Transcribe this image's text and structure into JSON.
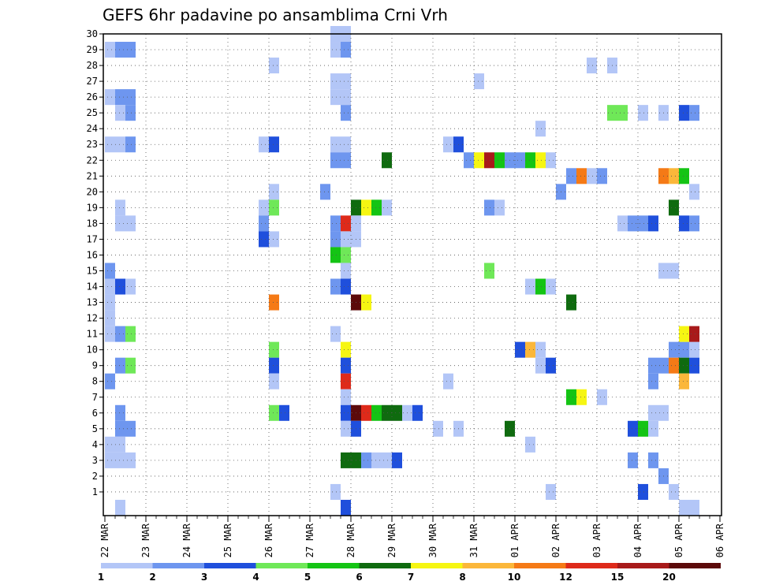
{
  "chart_data": {
    "type": "heatmap",
    "title": "GEFS 6hr padavine po ansamblima Crni Vrh",
    "ylim": [
      0,
      30
    ],
    "y_ticks": [
      "1",
      "2",
      "3",
      "4",
      "5",
      "6",
      "7",
      "8",
      "9",
      "10",
      "11",
      "12",
      "13",
      "14",
      "15",
      "16",
      "17",
      "18",
      "19",
      "20",
      "21",
      "22",
      "23",
      "24",
      "25",
      "26",
      "27",
      "28",
      "29",
      "30"
    ],
    "x_ticks": [
      "22 MAR",
      "23 MAR",
      "24 MAR",
      "25 MAR",
      "26 MAR",
      "27 MAR",
      "28 MAR",
      "29 MAR",
      "30 MAR",
      "31 MAR",
      "01 APR",
      "02 APR",
      "03 APR",
      "04 APR",
      "05 APR",
      "06 APR"
    ],
    "steps_per_day": 4,
    "grid": "dotted",
    "colorbar": {
      "levels": [
        "1",
        "2",
        "3",
        "4",
        "5",
        "6",
        "7",
        "8",
        "10",
        "12",
        "15",
        "20"
      ],
      "colors": [
        "#b3c6f7",
        "#6e96ef",
        "#1f4fdc",
        "#6fe858",
        "#14c414",
        "#0f6b0f",
        "#f6f612",
        "#fbb73a",
        "#f57a16",
        "#de2a1a",
        "#a81a1a",
        "#5c0a0a"
      ]
    },
    "cells": [
      [
        0,
        29,
        0
      ],
      [
        1,
        29,
        1
      ],
      [
        2,
        29,
        1
      ],
      [
        0,
        26,
        0
      ],
      [
        1,
        26,
        1
      ],
      [
        2,
        26,
        1
      ],
      [
        1,
        25,
        0
      ],
      [
        2,
        25,
        1
      ],
      [
        0,
        23,
        0
      ],
      [
        1,
        23,
        0
      ],
      [
        2,
        23,
        1
      ],
      [
        1,
        19,
        0
      ],
      [
        1,
        18,
        0
      ],
      [
        2,
        18,
        0
      ],
      [
        0,
        15,
        1
      ],
      [
        0,
        14,
        0
      ],
      [
        1,
        14,
        2
      ],
      [
        2,
        14,
        0
      ],
      [
        0,
        13,
        0
      ],
      [
        0,
        12,
        0
      ],
      [
        0,
        11,
        0
      ],
      [
        1,
        11,
        1
      ],
      [
        2,
        11,
        3
      ],
      [
        1,
        9,
        1
      ],
      [
        2,
        9,
        3
      ],
      [
        0,
        8,
        1
      ],
      [
        1,
        6,
        1
      ],
      [
        1,
        5,
        1
      ],
      [
        2,
        5,
        1
      ],
      [
        0,
        4,
        0
      ],
      [
        1,
        4,
        0
      ],
      [
        0,
        3,
        0
      ],
      [
        1,
        3,
        0
      ],
      [
        2,
        3,
        0
      ],
      [
        1,
        0,
        0
      ],
      [
        16,
        28,
        0
      ],
      [
        15,
        23,
        0
      ],
      [
        16,
        23,
        2
      ],
      [
        16,
        20,
        0
      ],
      [
        15,
        19,
        0
      ],
      [
        16,
        19,
        3
      ],
      [
        15,
        18,
        1
      ],
      [
        15,
        17,
        2
      ],
      [
        16,
        17,
        0
      ],
      [
        16,
        13,
        8
      ],
      [
        16,
        10,
        3
      ],
      [
        16,
        9,
        2
      ],
      [
        16,
        8,
        0
      ],
      [
        16,
        6,
        3
      ],
      [
        17,
        6,
        2
      ],
      [
        21,
        20,
        1
      ],
      [
        22,
        30,
        0
      ],
      [
        23,
        30,
        0
      ],
      [
        22,
        29,
        0
      ],
      [
        23,
        29,
        1
      ],
      [
        22,
        27,
        0
      ],
      [
        23,
        27,
        0
      ],
      [
        22,
        26,
        0
      ],
      [
        23,
        26,
        0
      ],
      [
        23,
        25,
        1
      ],
      [
        22,
        23,
        0
      ],
      [
        23,
        23,
        0
      ],
      [
        22,
        22,
        1
      ],
      [
        23,
        22,
        1
      ],
      [
        22,
        18,
        1
      ],
      [
        23,
        18,
        9
      ],
      [
        22,
        17,
        1
      ],
      [
        23,
        17,
        0
      ],
      [
        22,
        16,
        4
      ],
      [
        23,
        16,
        3
      ],
      [
        23,
        15,
        0
      ],
      [
        22,
        14,
        1
      ],
      [
        23,
        14,
        2
      ],
      [
        22,
        11,
        0
      ],
      [
        23,
        10,
        6
      ],
      [
        23,
        9,
        2
      ],
      [
        23,
        8,
        9
      ],
      [
        23,
        7,
        0
      ],
      [
        23,
        6,
        2
      ],
      [
        23,
        5,
        0
      ],
      [
        23,
        3,
        5
      ],
      [
        22,
        1,
        0
      ],
      [
        23,
        0,
        2
      ],
      [
        24,
        19,
        5
      ],
      [
        25,
        19,
        6
      ],
      [
        26,
        19,
        4
      ],
      [
        27,
        19,
        0
      ],
      [
        24,
        18,
        0
      ],
      [
        24,
        17,
        0
      ],
      [
        24,
        13,
        11
      ],
      [
        25,
        13,
        6
      ],
      [
        24,
        6,
        11
      ],
      [
        25,
        6,
        9
      ],
      [
        26,
        6,
        4
      ],
      [
        27,
        6,
        5
      ],
      [
        28,
        6,
        5
      ],
      [
        29,
        6,
        0
      ],
      [
        30,
        6,
        2
      ],
      [
        24,
        5,
        2
      ],
      [
        24,
        3,
        5
      ],
      [
        25,
        3,
        1
      ],
      [
        26,
        3,
        0
      ],
      [
        27,
        3,
        0
      ],
      [
        28,
        3,
        2
      ],
      [
        27,
        22,
        5
      ],
      [
        32,
        5,
        0
      ],
      [
        34,
        5,
        0
      ],
      [
        33,
        8,
        0
      ],
      [
        33,
        23,
        0
      ],
      [
        34,
        23,
        2
      ],
      [
        36,
        27,
        0
      ],
      [
        35,
        22,
        1
      ],
      [
        36,
        22,
        6
      ],
      [
        37,
        22,
        10
      ],
      [
        38,
        22,
        4
      ],
      [
        39,
        22,
        1
      ],
      [
        40,
        22,
        1
      ],
      [
        41,
        22,
        4
      ],
      [
        42,
        22,
        6
      ],
      [
        43,
        22,
        0
      ],
      [
        37,
        19,
        1
      ],
      [
        38,
        19,
        0
      ],
      [
        37,
        15,
        3
      ],
      [
        39,
        5,
        5
      ],
      [
        40,
        10,
        2
      ],
      [
        41,
        10,
        7
      ],
      [
        42,
        10,
        0
      ],
      [
        41,
        14,
        0
      ],
      [
        42,
        14,
        4
      ],
      [
        43,
        14,
        0
      ],
      [
        42,
        9,
        0
      ],
      [
        43,
        9,
        2
      ],
      [
        41,
        4,
        0
      ],
      [
        42,
        24,
        0
      ],
      [
        44,
        20,
        1
      ],
      [
        45,
        21,
        1
      ],
      [
        46,
        21,
        8
      ],
      [
        47,
        21,
        0
      ],
      [
        48,
        21,
        1
      ],
      [
        45,
        13,
        5
      ],
      [
        43,
        1,
        0
      ],
      [
        45,
        7,
        4
      ],
      [
        46,
        7,
        6
      ],
      [
        47,
        28,
        0
      ],
      [
        49,
        28,
        0
      ],
      [
        48,
        7,
        0
      ],
      [
        49,
        25,
        3
      ],
      [
        50,
        25,
        3
      ],
      [
        52,
        25,
        0
      ],
      [
        54,
        25,
        0
      ],
      [
        56,
        25,
        2
      ],
      [
        57,
        25,
        1
      ],
      [
        50,
        18,
        0
      ],
      [
        51,
        18,
        1
      ],
      [
        52,
        18,
        1
      ],
      [
        53,
        18,
        2
      ],
      [
        56,
        18,
        2
      ],
      [
        57,
        18,
        1
      ],
      [
        54,
        21,
        8
      ],
      [
        55,
        21,
        7
      ],
      [
        56,
        21,
        4
      ],
      [
        55,
        19,
        5
      ],
      [
        54,
        15,
        0
      ],
      [
        55,
        15,
        0
      ],
      [
        55,
        10,
        1
      ],
      [
        56,
        10,
        1
      ],
      [
        57,
        10,
        0
      ],
      [
        54,
        9,
        1
      ],
      [
        55,
        9,
        8
      ],
      [
        56,
        9,
        5
      ],
      [
        57,
        9,
        2
      ],
      [
        53,
        8,
        1
      ],
      [
        56,
        8,
        7
      ],
      [
        53,
        9,
        1
      ],
      [
        56,
        11,
        6
      ],
      [
        57,
        11,
        10
      ],
      [
        53,
        6,
        0
      ],
      [
        54,
        6,
        0
      ],
      [
        51,
        5,
        2
      ],
      [
        52,
        5,
        4
      ],
      [
        53,
        5,
        0
      ],
      [
        51,
        3,
        1
      ],
      [
        53,
        3,
        1
      ],
      [
        54,
        2,
        1
      ],
      [
        52,
        1,
        2
      ],
      [
        55,
        1,
        0
      ],
      [
        56,
        0,
        0
      ],
      [
        57,
        0,
        0
      ],
      [
        57,
        20,
        0
      ]
    ]
  }
}
